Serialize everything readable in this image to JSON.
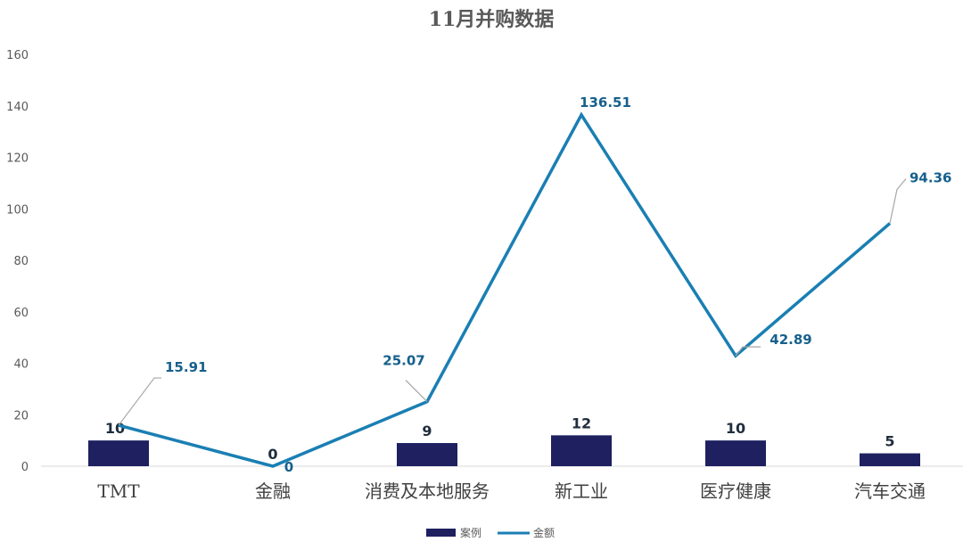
{
  "chart_data": {
    "type": "bar",
    "title": "11月并购数据",
    "categories": [
      "TMT",
      "金融",
      "消费及本地服务",
      "新工业",
      "医疗健康",
      "汽车交通"
    ],
    "ylim": [
      0,
      160
    ],
    "yticks": [
      0,
      20,
      40,
      60,
      80,
      100,
      120,
      140,
      160
    ],
    "grid": false,
    "legend_position": "bottom",
    "series": [
      {
        "name": "案例",
        "kind": "bar",
        "color": "#1f2060",
        "values": [
          10,
          0,
          9,
          12,
          10,
          5
        ]
      },
      {
        "name": "金额",
        "kind": "line",
        "color": "#1a7fb3",
        "label_color": "#16608c",
        "values": [
          15.91,
          0,
          25.07,
          136.51,
          42.89,
          94.36
        ]
      }
    ]
  }
}
